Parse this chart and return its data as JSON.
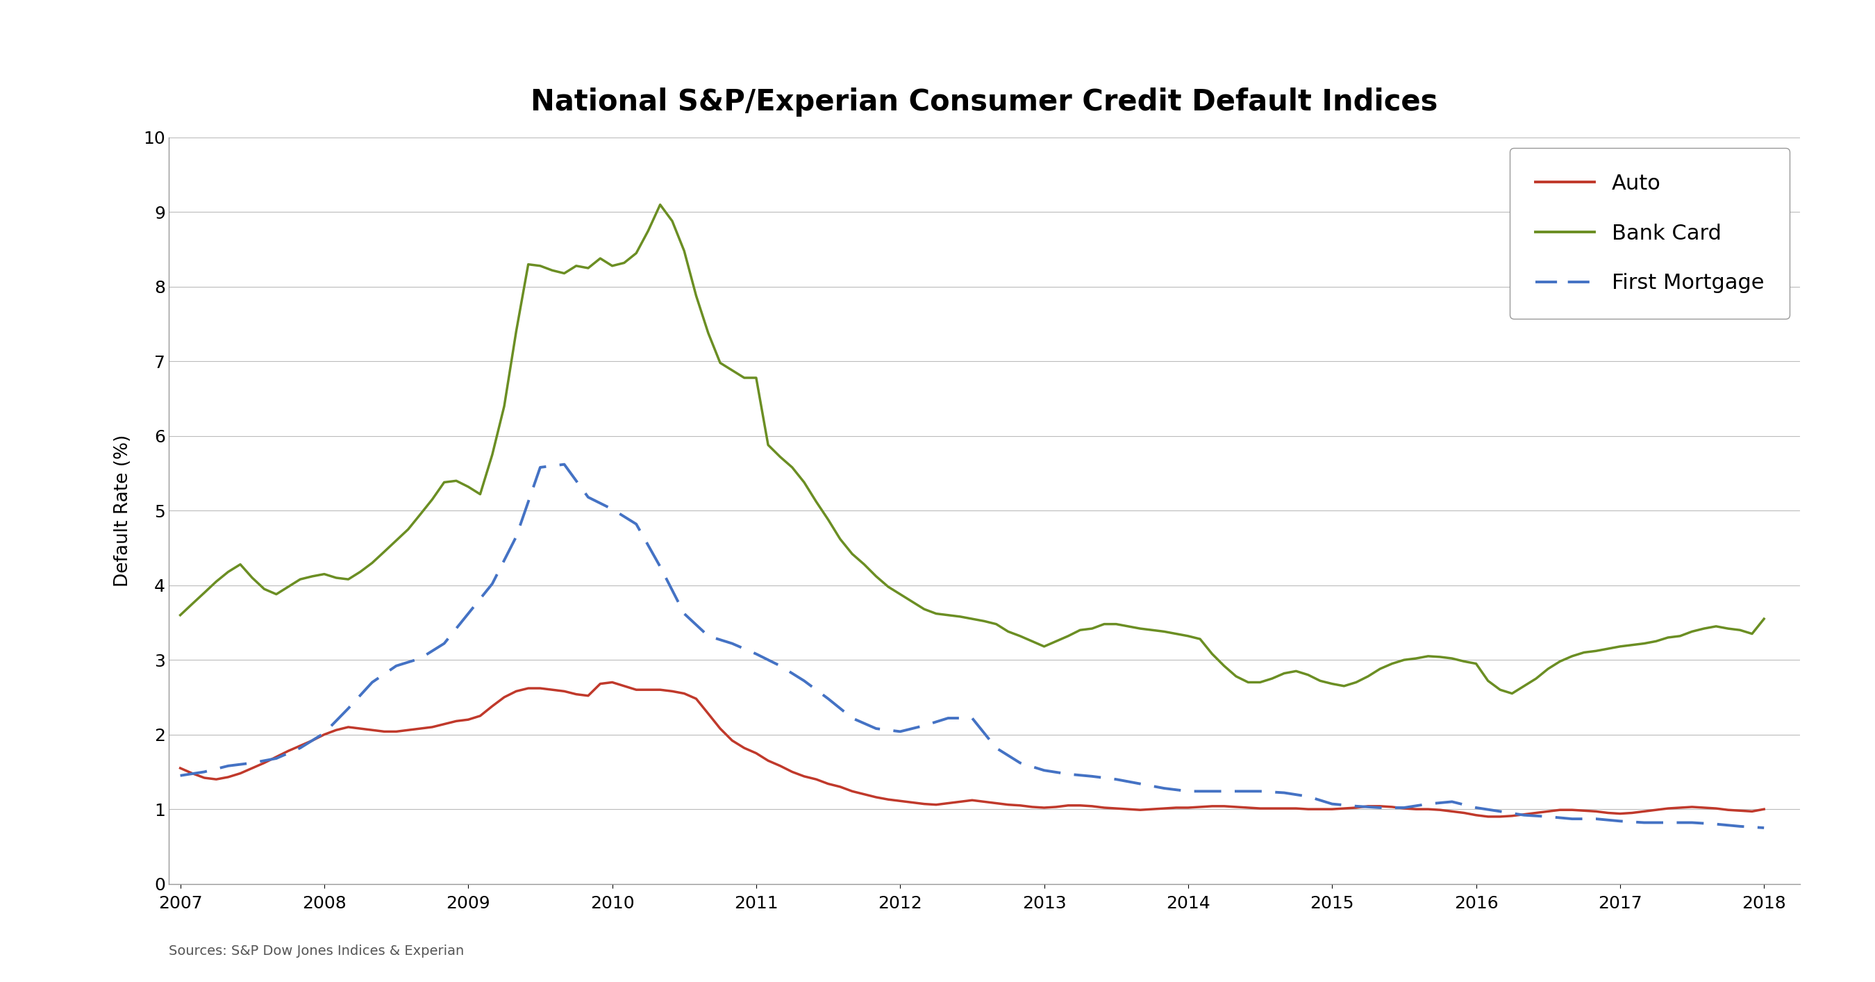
{
  "title": "National S&P/Experian Consumer Credit Default Indices",
  "ylabel": "Default Rate (%)",
  "source_text": "Sources: S&P Dow Jones Indices & Experian",
  "ylim": [
    0,
    10
  ],
  "yticks": [
    0,
    1,
    2,
    3,
    4,
    5,
    6,
    7,
    8,
    9,
    10
  ],
  "xlim_start": 2006.92,
  "xlim_end": 2018.25,
  "xtick_years": [
    2007,
    2008,
    2009,
    2010,
    2011,
    2012,
    2013,
    2014,
    2015,
    2016,
    2017,
    2018
  ],
  "auto_color": "#C0392B",
  "bankcard_color": "#6B8E23",
  "mortgage_color": "#4472C4",
  "background_color": "#FFFFFF",
  "grid_color": "#BBBBBB",
  "title_fontsize": 30,
  "label_fontsize": 19,
  "tick_fontsize": 18,
  "legend_fontsize": 22,
  "source_fontsize": 14,
  "auto_x": [
    2007.0,
    2007.083,
    2007.167,
    2007.25,
    2007.333,
    2007.417,
    2007.5,
    2007.583,
    2007.667,
    2007.75,
    2007.833,
    2007.917,
    2008.0,
    2008.083,
    2008.167,
    2008.25,
    2008.333,
    2008.417,
    2008.5,
    2008.583,
    2008.667,
    2008.75,
    2008.833,
    2008.917,
    2009.0,
    2009.083,
    2009.167,
    2009.25,
    2009.333,
    2009.417,
    2009.5,
    2009.583,
    2009.667,
    2009.75,
    2009.833,
    2009.917,
    2010.0,
    2010.083,
    2010.167,
    2010.25,
    2010.333,
    2010.417,
    2010.5,
    2010.583,
    2010.667,
    2010.75,
    2010.833,
    2010.917,
    2011.0,
    2011.083,
    2011.167,
    2011.25,
    2011.333,
    2011.417,
    2011.5,
    2011.583,
    2011.667,
    2011.75,
    2011.833,
    2011.917,
    2012.0,
    2012.083,
    2012.167,
    2012.25,
    2012.333,
    2012.417,
    2012.5,
    2012.583,
    2012.667,
    2012.75,
    2012.833,
    2012.917,
    2013.0,
    2013.083,
    2013.167,
    2013.25,
    2013.333,
    2013.417,
    2013.5,
    2013.583,
    2013.667,
    2013.75,
    2013.833,
    2013.917,
    2014.0,
    2014.083,
    2014.167,
    2014.25,
    2014.333,
    2014.417,
    2014.5,
    2014.583,
    2014.667,
    2014.75,
    2014.833,
    2014.917,
    2015.0,
    2015.083,
    2015.167,
    2015.25,
    2015.333,
    2015.417,
    2015.5,
    2015.583,
    2015.667,
    2015.75,
    2015.833,
    2015.917,
    2016.0,
    2016.083,
    2016.167,
    2016.25,
    2016.333,
    2016.417,
    2016.5,
    2016.583,
    2016.667,
    2016.75,
    2016.833,
    2016.917,
    2017.0,
    2017.083,
    2017.167,
    2017.25,
    2017.333,
    2017.417,
    2017.5,
    2017.583,
    2017.667,
    2017.75,
    2017.833,
    2017.917,
    2018.0
  ],
  "auto_y": [
    1.55,
    1.48,
    1.42,
    1.4,
    1.43,
    1.48,
    1.55,
    1.62,
    1.7,
    1.78,
    1.85,
    1.92,
    2.0,
    2.06,
    2.1,
    2.08,
    2.06,
    2.04,
    2.04,
    2.06,
    2.08,
    2.1,
    2.14,
    2.18,
    2.2,
    2.25,
    2.38,
    2.5,
    2.58,
    2.62,
    2.62,
    2.6,
    2.58,
    2.54,
    2.52,
    2.68,
    2.7,
    2.65,
    2.6,
    2.6,
    2.6,
    2.58,
    2.55,
    2.48,
    2.28,
    2.08,
    1.92,
    1.82,
    1.75,
    1.65,
    1.58,
    1.5,
    1.44,
    1.4,
    1.34,
    1.3,
    1.24,
    1.2,
    1.16,
    1.13,
    1.11,
    1.09,
    1.07,
    1.06,
    1.08,
    1.1,
    1.12,
    1.1,
    1.08,
    1.06,
    1.05,
    1.03,
    1.02,
    1.03,
    1.05,
    1.05,
    1.04,
    1.02,
    1.01,
    1.0,
    0.99,
    1.0,
    1.01,
    1.02,
    1.02,
    1.03,
    1.04,
    1.04,
    1.03,
    1.02,
    1.01,
    1.01,
    1.01,
    1.01,
    1.0,
    1.0,
    1.0,
    1.01,
    1.02,
    1.04,
    1.04,
    1.03,
    1.01,
    1.0,
    1.0,
    0.99,
    0.97,
    0.95,
    0.92,
    0.9,
    0.9,
    0.91,
    0.93,
    0.95,
    0.97,
    0.99,
    0.99,
    0.98,
    0.97,
    0.95,
    0.94,
    0.95,
    0.97,
    0.99,
    1.01,
    1.02,
    1.03,
    1.02,
    1.01,
    0.99,
    0.98,
    0.97,
    1.0
  ],
  "bankcard_x": [
    2007.0,
    2007.083,
    2007.167,
    2007.25,
    2007.333,
    2007.417,
    2007.5,
    2007.583,
    2007.667,
    2007.75,
    2007.833,
    2007.917,
    2008.0,
    2008.083,
    2008.167,
    2008.25,
    2008.333,
    2008.417,
    2008.5,
    2008.583,
    2008.667,
    2008.75,
    2008.833,
    2008.917,
    2009.0,
    2009.083,
    2009.167,
    2009.25,
    2009.333,
    2009.417,
    2009.5,
    2009.583,
    2009.667,
    2009.75,
    2009.833,
    2009.917,
    2010.0,
    2010.083,
    2010.167,
    2010.25,
    2010.333,
    2010.417,
    2010.5,
    2010.583,
    2010.667,
    2010.75,
    2010.833,
    2010.917,
    2011.0,
    2011.083,
    2011.167,
    2011.25,
    2011.333,
    2011.417,
    2011.5,
    2011.583,
    2011.667,
    2011.75,
    2011.833,
    2011.917,
    2012.0,
    2012.083,
    2012.167,
    2012.25,
    2012.333,
    2012.417,
    2012.5,
    2012.583,
    2012.667,
    2012.75,
    2012.833,
    2012.917,
    2013.0,
    2013.083,
    2013.167,
    2013.25,
    2013.333,
    2013.417,
    2013.5,
    2013.583,
    2013.667,
    2013.75,
    2013.833,
    2013.917,
    2014.0,
    2014.083,
    2014.167,
    2014.25,
    2014.333,
    2014.417,
    2014.5,
    2014.583,
    2014.667,
    2014.75,
    2014.833,
    2014.917,
    2015.0,
    2015.083,
    2015.167,
    2015.25,
    2015.333,
    2015.417,
    2015.5,
    2015.583,
    2015.667,
    2015.75,
    2015.833,
    2015.917,
    2016.0,
    2016.083,
    2016.167,
    2016.25,
    2016.333,
    2016.417,
    2016.5,
    2016.583,
    2016.667,
    2016.75,
    2016.833,
    2016.917,
    2017.0,
    2017.083,
    2017.167,
    2017.25,
    2017.333,
    2017.417,
    2017.5,
    2017.583,
    2017.667,
    2017.75,
    2017.833,
    2017.917,
    2018.0
  ],
  "bankcard_y": [
    3.6,
    3.75,
    3.9,
    4.05,
    4.18,
    4.28,
    4.1,
    3.95,
    3.88,
    3.98,
    4.08,
    4.12,
    4.15,
    4.1,
    4.08,
    4.18,
    4.3,
    4.45,
    4.6,
    4.75,
    4.95,
    5.15,
    5.38,
    5.4,
    5.32,
    5.22,
    5.75,
    6.4,
    7.4,
    8.3,
    8.28,
    8.22,
    8.18,
    8.28,
    8.25,
    8.38,
    8.28,
    8.32,
    8.45,
    8.75,
    9.1,
    8.88,
    8.48,
    7.88,
    7.38,
    6.98,
    6.88,
    6.78,
    6.78,
    5.88,
    5.72,
    5.58,
    5.38,
    5.12,
    4.88,
    4.62,
    4.42,
    4.28,
    4.12,
    3.98,
    3.88,
    3.78,
    3.68,
    3.62,
    3.6,
    3.58,
    3.55,
    3.52,
    3.48,
    3.38,
    3.32,
    3.25,
    3.18,
    3.25,
    3.32,
    3.4,
    3.42,
    3.48,
    3.48,
    3.45,
    3.42,
    3.4,
    3.38,
    3.35,
    3.32,
    3.28,
    3.08,
    2.92,
    2.78,
    2.7,
    2.7,
    2.75,
    2.82,
    2.85,
    2.8,
    2.72,
    2.68,
    2.65,
    2.7,
    2.78,
    2.88,
    2.95,
    3.0,
    3.02,
    3.05,
    3.04,
    3.02,
    2.98,
    2.95,
    2.72,
    2.6,
    2.55,
    2.65,
    2.75,
    2.88,
    2.98,
    3.05,
    3.1,
    3.12,
    3.15,
    3.18,
    3.2,
    3.22,
    3.25,
    3.3,
    3.32,
    3.38,
    3.42,
    3.45,
    3.42,
    3.4,
    3.35,
    3.55
  ],
  "mortgage_x": [
    2007.0,
    2007.167,
    2007.333,
    2007.5,
    2007.667,
    2007.833,
    2008.0,
    2008.167,
    2008.333,
    2008.5,
    2008.667,
    2008.833,
    2009.0,
    2009.167,
    2009.333,
    2009.5,
    2009.667,
    2009.833,
    2010.0,
    2010.167,
    2010.333,
    2010.5,
    2010.667,
    2010.833,
    2011.0,
    2011.167,
    2011.333,
    2011.5,
    2011.667,
    2011.833,
    2012.0,
    2012.167,
    2012.333,
    2012.5,
    2012.667,
    2012.833,
    2013.0,
    2013.167,
    2013.333,
    2013.5,
    2013.667,
    2013.833,
    2014.0,
    2014.167,
    2014.333,
    2014.5,
    2014.667,
    2014.833,
    2015.0,
    2015.167,
    2015.333,
    2015.5,
    2015.667,
    2015.833,
    2016.0,
    2016.167,
    2016.333,
    2016.5,
    2016.667,
    2016.833,
    2017.0,
    2017.167,
    2017.333,
    2017.5,
    2017.667,
    2017.833,
    2018.0
  ],
  "mortgage_y": [
    1.45,
    1.5,
    1.58,
    1.62,
    1.68,
    1.82,
    2.02,
    2.35,
    2.7,
    2.92,
    3.02,
    3.22,
    3.62,
    4.02,
    4.65,
    5.58,
    5.62,
    5.18,
    5.02,
    4.82,
    4.25,
    3.62,
    3.32,
    3.22,
    3.08,
    2.92,
    2.72,
    2.48,
    2.22,
    2.08,
    2.04,
    2.12,
    2.22,
    2.22,
    1.82,
    1.62,
    1.52,
    1.47,
    1.44,
    1.4,
    1.34,
    1.28,
    1.24,
    1.24,
    1.24,
    1.24,
    1.22,
    1.17,
    1.07,
    1.04,
    1.02,
    1.02,
    1.07,
    1.1,
    1.02,
    0.97,
    0.92,
    0.9,
    0.87,
    0.87,
    0.84,
    0.82,
    0.82,
    0.82,
    0.8,
    0.77,
    0.75
  ]
}
